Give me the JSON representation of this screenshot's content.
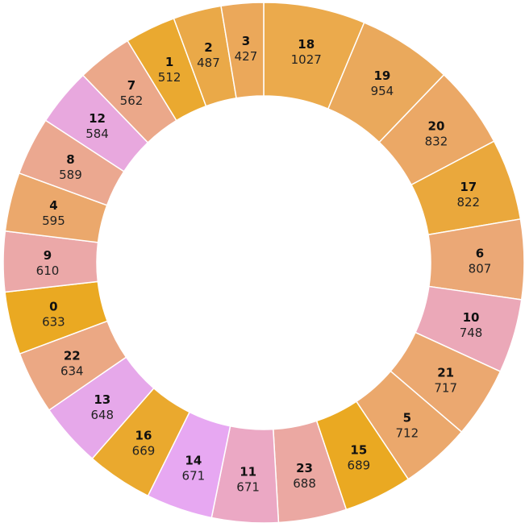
{
  "chart_data": {
    "type": "pie",
    "variant": "donut",
    "title": "",
    "start_angle_deg": 0,
    "direction": "clockwise",
    "slices": [
      {
        "label": "18",
        "value": 1027,
        "color": "#ebaa4c"
      },
      {
        "label": "19",
        "value": 954,
        "color": "#eaa95c"
      },
      {
        "label": "20",
        "value": 832,
        "color": "#eba866"
      },
      {
        "label": "17",
        "value": 822,
        "color": "#eaa83c"
      },
      {
        "label": "6",
        "value": 807,
        "color": "#eba876"
      },
      {
        "label": "10",
        "value": 748,
        "color": "#eba8b8"
      },
      {
        "label": "21",
        "value": 717,
        "color": "#eba870"
      },
      {
        "label": "5",
        "value": 712,
        "color": "#eba86c"
      },
      {
        "label": "15",
        "value": 689,
        "color": "#eaa922"
      },
      {
        "label": "23",
        "value": 688,
        "color": "#eba8a2"
      },
      {
        "label": "11",
        "value": 671,
        "color": "#eba8c4"
      },
      {
        "label": "14",
        "value": 671,
        "color": "#e7a8f2"
      },
      {
        "label": "16",
        "value": 669,
        "color": "#eaa92e"
      },
      {
        "label": "13",
        "value": 648,
        "color": "#e6a8ea"
      },
      {
        "label": "22",
        "value": 634,
        "color": "#eba884"
      },
      {
        "label": "0",
        "value": 633,
        "color": "#eaa922"
      },
      {
        "label": "9",
        "value": 610,
        "color": "#eba8a8"
      },
      {
        "label": "4",
        "value": 595,
        "color": "#eba86c"
      },
      {
        "label": "8",
        "value": 589,
        "color": "#eba890"
      },
      {
        "label": "12",
        "value": 584,
        "color": "#e8a8de"
      },
      {
        "label": "7",
        "value": 562,
        "color": "#eba88a"
      },
      {
        "label": "1",
        "value": 512,
        "color": "#eaa930"
      },
      {
        "label": "2",
        "value": 487,
        "color": "#eaa948"
      },
      {
        "label": "3",
        "value": 427,
        "color": "#eba85a"
      }
    ]
  }
}
